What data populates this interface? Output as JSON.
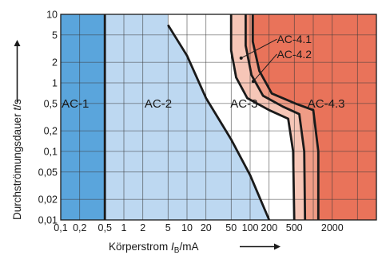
{
  "chart_data": {
    "type": "area",
    "x_scale": "log",
    "y_scale": "log",
    "xlim": [
      0.1,
      10000
    ],
    "ylim": [
      0.01,
      10
    ],
    "grid": true,
    "x_ticks": [
      {
        "value": 0.1,
        "label": "0,1"
      },
      {
        "value": 0.2,
        "label": "0,2"
      },
      {
        "value": 0.5,
        "label": "0,5"
      },
      {
        "value": 1,
        "label": "1"
      },
      {
        "value": 2,
        "label": "2"
      },
      {
        "value": 5,
        "label": "5"
      },
      {
        "value": 10,
        "label": "10"
      },
      {
        "value": 20,
        "label": "20"
      },
      {
        "value": 50,
        "label": "50"
      },
      {
        "value": 100,
        "label": "100"
      },
      {
        "value": 200,
        "label": "200"
      },
      {
        "value": 500,
        "label": "500"
      },
      {
        "value": 2000,
        "label": "2000"
      }
    ],
    "y_ticks": [
      {
        "value": 10,
        "label": "10"
      },
      {
        "value": 5,
        "label": "5"
      },
      {
        "value": 2,
        "label": "2"
      },
      {
        "value": 1,
        "label": "1"
      },
      {
        "value": 0.5,
        "label": "0,5"
      },
      {
        "value": 0.2,
        "label": "0,2"
      },
      {
        "value": 0.1,
        "label": "0,1"
      },
      {
        "value": 0.05,
        "label": "0,05"
      },
      {
        "value": 0.02,
        "label": "0,02"
      },
      {
        "value": 0.01,
        "label": "0,01"
      }
    ],
    "xlabel": {
      "prefix": "Körperstrom ",
      "var": "I",
      "sub": "B",
      "suffix": "/mA"
    },
    "ylabel": {
      "prefix": "Durchströmungsdauer ",
      "var": "t",
      "suffix": "/s"
    },
    "zones": [
      {
        "name": "AC-1",
        "color": "#5aa5dc",
        "label_at": [
          0.17,
          0.5
        ]
      },
      {
        "name": "AC-2",
        "color": "#bdd8f1",
        "label_at": [
          3.5,
          0.5
        ]
      },
      {
        "name": "AC-3",
        "color": "#ffffff",
        "label_at": [
          80,
          0.5
        ]
      },
      {
        "name": "AC-4.3",
        "color": "#e9735a",
        "label_at": [
          1600,
          0.5
        ]
      }
    ],
    "band_colors": {
      "c1_c2": "#f6c6b7",
      "c2_c3": "#ef9c86"
    },
    "boundaries": [
      {
        "name": "a",
        "points": [
          [
            0.5,
            0.01
          ],
          [
            0.5,
            10
          ]
        ]
      },
      {
        "name": "b",
        "points": [
          [
            5,
            7
          ],
          [
            10,
            2.5
          ],
          [
            20,
            0.6
          ],
          [
            50,
            0.15
          ],
          [
            100,
            0.045
          ],
          [
            200,
            0.01
          ]
        ]
      },
      {
        "name": "c1",
        "points": [
          [
            50,
            10
          ],
          [
            50,
            3
          ],
          [
            60,
            1.2
          ],
          [
            90,
            0.6
          ],
          [
            200,
            0.4
          ],
          [
            400,
            0.3
          ],
          [
            480,
            0.1
          ],
          [
            500,
            0.01
          ]
        ]
      },
      {
        "name": "c2",
        "points": [
          [
            85,
            10
          ],
          [
            85,
            3.5
          ],
          [
            105,
            1.3
          ],
          [
            160,
            0.65
          ],
          [
            330,
            0.45
          ],
          [
            600,
            0.35
          ],
          [
            720,
            0.1
          ],
          [
            740,
            0.01
          ]
        ]
      },
      {
        "name": "c3",
        "points": [
          [
            110,
            10
          ],
          [
            110,
            4
          ],
          [
            140,
            1.5
          ],
          [
            220,
            0.7
          ],
          [
            520,
            0.5
          ],
          [
            1000,
            0.4
          ],
          [
            1200,
            0.1
          ],
          [
            1200,
            0.01
          ]
        ]
      }
    ],
    "annotations": [
      {
        "text": "AC-4.1",
        "label_at": [
          600,
          3.8
        ],
        "pointer_to": [
          72,
          2.3
        ]
      },
      {
        "text": "AC-4.2",
        "label_at": [
          600,
          2.3
        ],
        "pointer_to": [
          112,
          1.05
        ]
      }
    ]
  }
}
